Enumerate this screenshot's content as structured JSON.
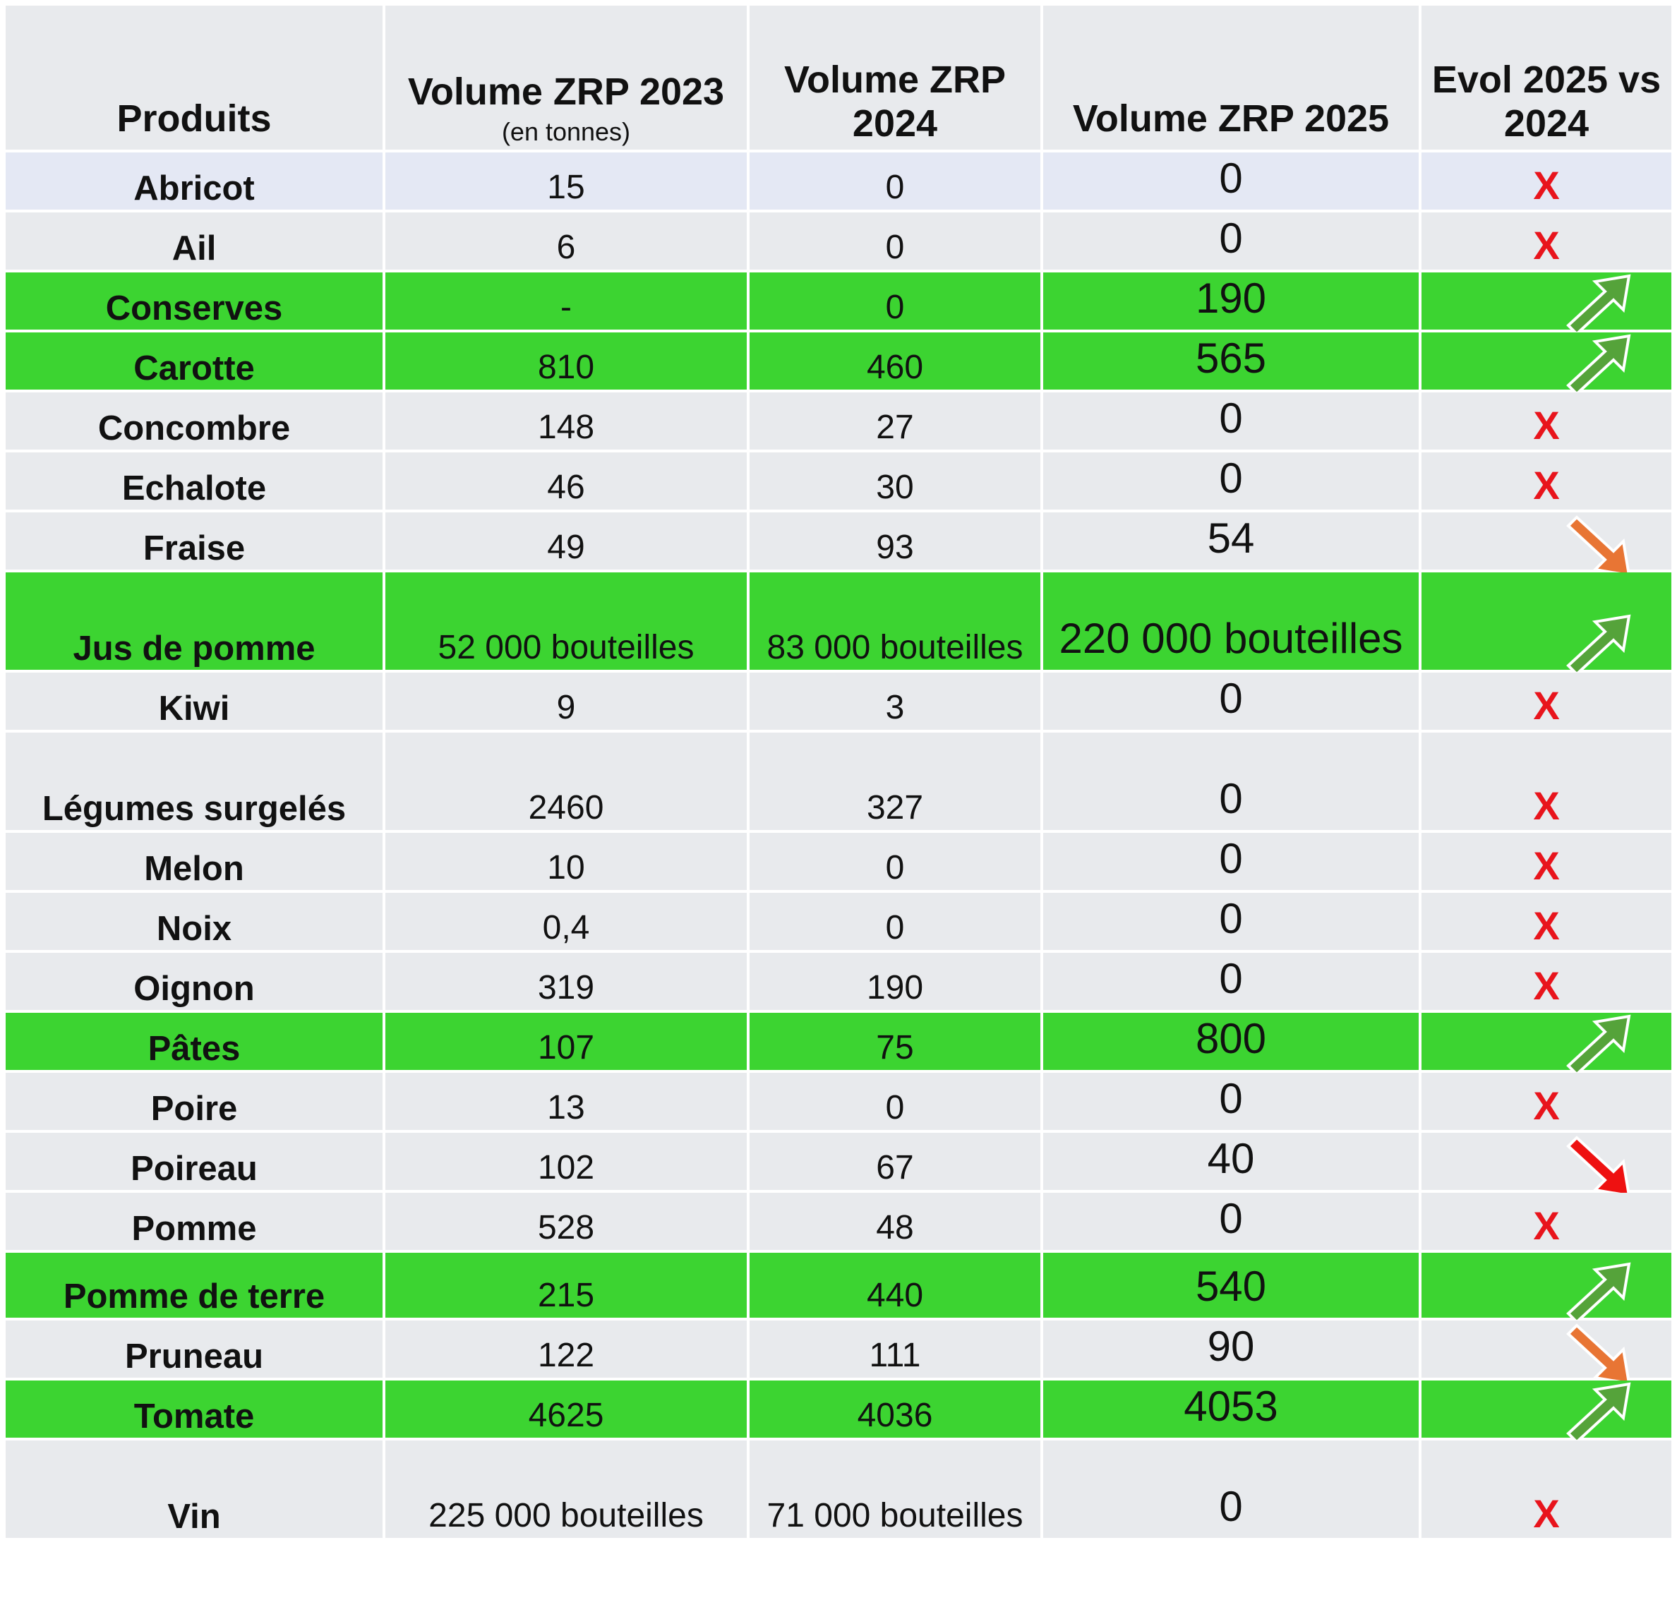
{
  "headers": {
    "produits": "Produits",
    "v2023": "Volume ZRP 2023",
    "v2023_sub": "(en tonnes)",
    "v2024": "Volume ZRP 2024",
    "v2025": "Volume ZRP 2025",
    "evol": "Evol 2025 vs 2024"
  },
  "colors": {
    "header_bg": "#e8eaed",
    "row_bg": "#e8eaed",
    "highlight_bg": "#3cd431",
    "x_mark": "#e8141c",
    "arrow_up": "#55a33a",
    "arrow_down_orange": "#e87534",
    "arrow_down_red": "#ee1111"
  },
  "rows": [
    {
      "produit": "Abricot",
      "v2023": "15",
      "v2024": "0",
      "v2025": "0",
      "evol": "X",
      "evol_type": "x",
      "highlight": false
    },
    {
      "produit": "Ail",
      "v2023": "6",
      "v2024": "0",
      "v2025": "0",
      "evol": "X",
      "evol_type": "x",
      "highlight": false
    },
    {
      "produit": "Conserves",
      "v2023": "-",
      "v2024": "0",
      "v2025": "190",
      "evol": "",
      "evol_type": "up-arrow-icon",
      "highlight": true
    },
    {
      "produit": "Carotte",
      "v2023": "810",
      "v2024": "460",
      "v2025": "565",
      "evol": "",
      "evol_type": "up-arrow-icon",
      "highlight": true
    },
    {
      "produit": "Concombre",
      "v2023": "148",
      "v2024": "27",
      "v2025": "0",
      "evol": "X",
      "evol_type": "x",
      "highlight": false
    },
    {
      "produit": "Echalote",
      "v2023": "46",
      "v2024": "30",
      "v2025": "0",
      "evol": "X",
      "evol_type": "x",
      "highlight": false
    },
    {
      "produit": "Fraise",
      "v2023": "49",
      "v2024": "93",
      "v2025": "54",
      "evol": "",
      "evol_type": "down-arrow-orange-icon",
      "highlight": false
    },
    {
      "produit": "Jus de pomme",
      "v2023": "52 000 bouteilles",
      "v2024": "83 000 bouteilles",
      "v2025": "220 000 bouteilles",
      "evol": "",
      "evol_type": "up-arrow-icon",
      "highlight": true
    },
    {
      "produit": "Kiwi",
      "v2023": "9",
      "v2024": "3",
      "v2025": "0",
      "evol": "X",
      "evol_type": "x",
      "highlight": false
    },
    {
      "produit": "Légumes surgelés",
      "v2023": "2460",
      "v2024": "327",
      "v2025": "0",
      "evol": "X",
      "evol_type": "x",
      "highlight": false
    },
    {
      "produit": "Melon",
      "v2023": "10",
      "v2024": "0",
      "v2025": "0",
      "evol": "X",
      "evol_type": "x",
      "highlight": false
    },
    {
      "produit": "Noix",
      "v2023": "0,4",
      "v2024": "0",
      "v2025": "0",
      "evol": "X",
      "evol_type": "x",
      "highlight": false
    },
    {
      "produit": "Oignon",
      "v2023": "319",
      "v2024": "190",
      "v2025": "0",
      "evol": "X",
      "evol_type": "x",
      "highlight": false
    },
    {
      "produit": "Pâtes",
      "v2023": "107",
      "v2024": "75",
      "v2025": "800",
      "evol": "",
      "evol_type": "up-arrow-icon",
      "highlight": true
    },
    {
      "produit": "Poire",
      "v2023": "13",
      "v2024": "0",
      "v2025": "0",
      "evol": "X",
      "evol_type": "x",
      "highlight": false
    },
    {
      "produit": "Poireau",
      "v2023": "102",
      "v2024": "67",
      "v2025": "40",
      "evol": "",
      "evol_type": "down-arrow-red-icon",
      "highlight": false
    },
    {
      "produit": "Pomme",
      "v2023": "528",
      "v2024": "48",
      "v2025": "0",
      "evol": "X",
      "evol_type": "x",
      "highlight": false
    },
    {
      "produit": "Pomme de terre",
      "v2023": "215",
      "v2024": "440",
      "v2025": "540",
      "evol": "",
      "evol_type": "up-arrow-icon",
      "highlight": true
    },
    {
      "produit": "Pruneau",
      "v2023": "122",
      "v2024": "111",
      "v2025": "90",
      "evol": "",
      "evol_type": "down-arrow-orange-icon",
      "highlight": false
    },
    {
      "produit": "Tomate",
      "v2023": "4625",
      "v2024": "4036",
      "v2025": "4053",
      "evol": "",
      "evol_type": "up-arrow-icon",
      "highlight": true
    },
    {
      "produit": "Vin",
      "v2023": "225 000 bouteilles",
      "v2024": "71 000 bouteilles",
      "v2025": "0",
      "evol": "X",
      "evol_type": "x",
      "highlight": false
    }
  ]
}
